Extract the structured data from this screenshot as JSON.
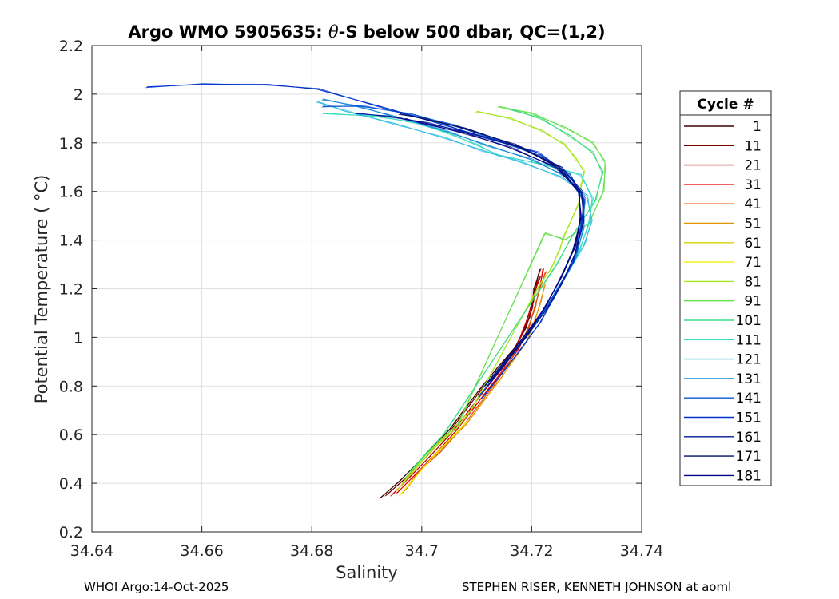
{
  "chart_data": {
    "type": "line",
    "title_parts": [
      "Argo WMO 5905635: ",
      "θ",
      "-S below 500 dbar,  QC=(1,2)"
    ],
    "xlabel": "Salinity",
    "ylabel": "Potential Temperature ( °C)",
    "xlim": [
      34.64,
      34.74
    ],
    "ylim": [
      0.2,
      2.2
    ],
    "x_ticks": [
      34.64,
      34.66,
      34.68,
      34.7,
      34.72,
      34.74
    ],
    "x_tick_labels": [
      "34.64",
      "34.66",
      "34.68",
      "34.7",
      "34.72",
      "34.74"
    ],
    "y_ticks": [
      0.2,
      0.4,
      0.6,
      0.8,
      1.0,
      1.2,
      1.4,
      1.6,
      1.8,
      2.0,
      2.2
    ],
    "y_tick_labels": [
      "0.2",
      "0.4",
      "0.6",
      "0.8",
      "1",
      "1.2",
      "1.4",
      "1.6",
      "1.8",
      "2",
      "2.2"
    ],
    "grid": true,
    "legend": {
      "title": "Cycle #",
      "placement": "right",
      "entries": [
        "1",
        "11",
        "21",
        "31",
        "41",
        "51",
        "61",
        "71",
        "81",
        "91",
        "101",
        "111",
        "121",
        "131",
        "141",
        "151",
        "161",
        "171",
        "181"
      ],
      "colors": [
        "#3d0000",
        "#7a0000",
        "#b80000",
        "#e60000",
        "#e55000",
        "#e39400",
        "#d7d000",
        "#f0f000",
        "#a6e61a",
        "#66e04d",
        "#3ddc80",
        "#33dcc2",
        "#33c0e6",
        "#1a8cd9",
        "#0a5ad2",
        "#0033cc",
        "#001a99",
        "#000d66",
        "#00008b"
      ]
    },
    "series": [
      {
        "name": "1",
        "color": "#3d0000",
        "points": [
          [
            34.6925,
            0.34
          ],
          [
            34.696,
            0.41
          ],
          [
            34.7,
            0.5
          ],
          [
            34.705,
            0.62
          ],
          [
            34.708,
            0.71
          ],
          [
            34.711,
            0.8
          ],
          [
            34.714,
            0.88
          ],
          [
            34.717,
            0.96
          ],
          [
            34.719,
            1.04
          ],
          [
            34.72,
            1.12
          ],
          [
            34.7205,
            1.2
          ],
          [
            34.7215,
            1.28
          ]
        ]
      },
      {
        "name": "11",
        "color": "#7a0000",
        "points": [
          [
            34.6935,
            0.35
          ],
          [
            34.697,
            0.42
          ],
          [
            34.7005,
            0.5
          ],
          [
            34.705,
            0.61
          ],
          [
            34.708,
            0.7
          ],
          [
            34.711,
            0.79
          ],
          [
            34.714,
            0.87
          ],
          [
            34.716,
            0.92
          ],
          [
            34.718,
            1.0
          ],
          [
            34.7195,
            1.08
          ],
          [
            34.7205,
            1.16
          ],
          [
            34.721,
            1.24
          ]
        ]
      },
      {
        "name": "21",
        "color": "#b80000",
        "points": [
          [
            34.6945,
            0.35
          ],
          [
            34.698,
            0.43
          ],
          [
            34.7015,
            0.51
          ],
          [
            34.7055,
            0.61
          ],
          [
            34.709,
            0.71
          ],
          [
            34.712,
            0.8
          ],
          [
            34.715,
            0.88
          ],
          [
            34.717,
            0.95
          ],
          [
            34.7185,
            1.03
          ],
          [
            34.7195,
            1.1
          ],
          [
            34.7205,
            1.18
          ],
          [
            34.7215,
            1.25
          ]
        ]
      },
      {
        "name": "31",
        "color": "#e60000",
        "points": [
          [
            34.6955,
            0.36
          ],
          [
            34.699,
            0.44
          ],
          [
            34.7025,
            0.52
          ],
          [
            34.706,
            0.61
          ],
          [
            34.7095,
            0.71
          ],
          [
            34.7125,
            0.8
          ],
          [
            34.715,
            0.87
          ],
          [
            34.7175,
            0.95
          ],
          [
            34.7195,
            1.04
          ],
          [
            34.7205,
            1.12
          ],
          [
            34.7215,
            1.2
          ],
          [
            34.722,
            1.28
          ]
        ]
      },
      {
        "name": "41",
        "color": "#e55000",
        "points": [
          [
            34.6965,
            0.36
          ],
          [
            34.6995,
            0.45
          ],
          [
            34.7035,
            0.53
          ],
          [
            34.707,
            0.62
          ],
          [
            34.71,
            0.71
          ],
          [
            34.713,
            0.8
          ],
          [
            34.7155,
            0.88
          ],
          [
            34.7175,
            0.96
          ],
          [
            34.7195,
            1.04
          ],
          [
            34.7205,
            1.12
          ],
          [
            34.7215,
            1.2
          ],
          [
            34.7225,
            1.27
          ]
        ]
      },
      {
        "name": "51",
        "color": "#e39400",
        "points": [
          [
            34.697,
            0.37
          ],
          [
            34.7,
            0.46
          ],
          [
            34.704,
            0.55
          ],
          [
            34.708,
            0.64
          ],
          [
            34.711,
            0.73
          ],
          [
            34.714,
            0.82
          ],
          [
            34.7165,
            0.9
          ],
          [
            34.719,
            0.98
          ],
          [
            34.7205,
            1.06
          ],
          [
            34.7215,
            1.14
          ],
          [
            34.7225,
            1.22
          ]
        ]
      },
      {
        "name": "61",
        "color": "#d7d000",
        "points": [
          [
            34.6955,
            0.37
          ],
          [
            34.6985,
            0.45
          ],
          [
            34.702,
            0.54
          ],
          [
            34.7055,
            0.62
          ],
          [
            34.708,
            0.68
          ]
        ]
      },
      {
        "name": "71",
        "color": "#f0f000",
        "points": [
          [
            34.696,
            0.35
          ],
          [
            34.699,
            0.43
          ],
          [
            34.7025,
            0.52
          ],
          [
            34.706,
            0.6
          ],
          [
            34.7085,
            0.66
          ]
        ]
      },
      {
        "name": "81",
        "color": "#a6e61a",
        "points": [
          [
            34.6965,
            0.4
          ],
          [
            34.6995,
            0.48
          ],
          [
            34.703,
            0.56
          ],
          [
            34.7065,
            0.63
          ],
          [
            34.709,
            0.7
          ],
          [
            34.7215,
            1.22
          ],
          [
            34.7235,
            1.28
          ],
          [
            34.725,
            1.36
          ],
          [
            34.726,
            1.42
          ],
          [
            34.7285,
            1.55
          ],
          [
            34.729,
            1.62
          ],
          [
            34.7295,
            1.68
          ],
          [
            34.728,
            1.74
          ],
          [
            34.726,
            1.79
          ],
          [
            34.722,
            1.85
          ],
          [
            34.716,
            1.9
          ],
          [
            34.71,
            1.93
          ]
        ]
      },
      {
        "name": "91",
        "color": "#66e04d",
        "points": [
          [
            34.697,
            0.42
          ],
          [
            34.7,
            0.5
          ],
          [
            34.7035,
            0.58
          ],
          [
            34.7065,
            0.64
          ],
          [
            34.7225,
            1.43
          ],
          [
            34.726,
            1.4
          ],
          [
            34.7305,
            1.47
          ],
          [
            34.733,
            1.6
          ],
          [
            34.7335,
            1.72
          ],
          [
            34.731,
            1.8
          ],
          [
            34.7265,
            1.86
          ],
          [
            34.72,
            1.92
          ],
          [
            34.714,
            1.95
          ]
        ]
      },
      {
        "name": "101",
        "color": "#3ddc80",
        "points": [
          [
            34.698,
            0.45
          ],
          [
            34.701,
            0.53
          ],
          [
            34.704,
            0.6
          ],
          [
            34.7245,
            1.3
          ],
          [
            34.7275,
            1.42
          ],
          [
            34.7315,
            1.56
          ],
          [
            34.733,
            1.68
          ],
          [
            34.731,
            1.76
          ],
          [
            34.727,
            1.83
          ],
          [
            34.7215,
            1.9
          ],
          [
            34.716,
            1.94
          ]
        ]
      },
      {
        "name": "111",
        "color": "#33dcc2",
        "points": [
          [
            34.7125,
            0.83
          ],
          [
            34.716,
            0.92
          ],
          [
            34.7195,
            1.02
          ],
          [
            34.7225,
            1.12
          ],
          [
            34.7255,
            1.22
          ],
          [
            34.7285,
            1.35
          ],
          [
            34.7305,
            1.47
          ],
          [
            34.731,
            1.57
          ],
          [
            34.729,
            1.67
          ],
          [
            34.722,
            1.71
          ],
          [
            34.714,
            1.75
          ],
          [
            34.71,
            1.79
          ],
          [
            34.705,
            1.84
          ],
          [
            34.699,
            1.88
          ],
          [
            34.692,
            1.91
          ],
          [
            34.682,
            1.92
          ]
        ]
      },
      {
        "name": "121",
        "color": "#33c0e6",
        "points": [
          [
            34.713,
            0.83
          ],
          [
            34.7165,
            0.93
          ],
          [
            34.72,
            1.04
          ],
          [
            34.7235,
            1.15
          ],
          [
            34.7265,
            1.26
          ],
          [
            34.7295,
            1.38
          ],
          [
            34.731,
            1.48
          ],
          [
            34.73,
            1.58
          ],
          [
            34.7255,
            1.66
          ],
          [
            34.718,
            1.72
          ],
          [
            34.711,
            1.77
          ],
          [
            34.704,
            1.82
          ],
          [
            34.695,
            1.88
          ],
          [
            34.686,
            1.93
          ],
          [
            34.681,
            1.97
          ]
        ]
      },
      {
        "name": "131",
        "color": "#1a8cd9",
        "points": [
          [
            34.7115,
            0.8
          ],
          [
            34.715,
            0.89
          ],
          [
            34.7185,
            0.99
          ],
          [
            34.722,
            1.1
          ],
          [
            34.725,
            1.21
          ],
          [
            34.728,
            1.33
          ],
          [
            34.7295,
            1.45
          ],
          [
            34.7295,
            1.56
          ],
          [
            34.7265,
            1.66
          ],
          [
            34.72,
            1.73
          ],
          [
            34.712,
            1.79
          ],
          [
            34.704,
            1.85
          ],
          [
            34.695,
            1.91
          ],
          [
            34.688,
            1.95
          ],
          [
            34.682,
            1.98
          ]
        ]
      },
      {
        "name": "141",
        "color": "#0a5ad2",
        "points": [
          [
            34.7105,
            0.76
          ],
          [
            34.714,
            0.86
          ],
          [
            34.7175,
            0.96
          ],
          [
            34.721,
            1.07
          ],
          [
            34.7245,
            1.19
          ],
          [
            34.7275,
            1.31
          ],
          [
            34.729,
            1.44
          ],
          [
            34.7295,
            1.55
          ],
          [
            34.7275,
            1.65
          ],
          [
            34.722,
            1.74
          ],
          [
            34.714,
            1.81
          ],
          [
            34.706,
            1.87
          ],
          [
            34.698,
            1.92
          ],
          [
            34.689,
            1.95
          ],
          [
            34.682,
            1.95
          ]
        ]
      },
      {
        "name": "151",
        "color": "#0033cc",
        "points": [
          [
            34.711,
            0.75
          ],
          [
            34.7145,
            0.85
          ],
          [
            34.718,
            0.95
          ],
          [
            34.7215,
            1.06
          ],
          [
            34.7245,
            1.18
          ],
          [
            34.7275,
            1.31
          ],
          [
            34.729,
            1.45
          ],
          [
            34.7295,
            1.57
          ],
          [
            34.727,
            1.67
          ],
          [
            34.721,
            1.76
          ],
          [
            34.712,
            1.82
          ],
          [
            34.703,
            1.88
          ],
          [
            34.694,
            1.94
          ],
          [
            34.681,
            2.02
          ],
          [
            34.672,
            2.04
          ],
          [
            34.66,
            2.04
          ],
          [
            34.65,
            2.03
          ]
        ]
      },
      {
        "name": "161",
        "color": "#001a99",
        "points": [
          [
            34.712,
            0.8
          ],
          [
            34.7155,
            0.9
          ],
          [
            34.719,
            1.0
          ],
          [
            34.7225,
            1.11
          ],
          [
            34.7255,
            1.22
          ],
          [
            34.728,
            1.35
          ],
          [
            34.7295,
            1.48
          ],
          [
            34.729,
            1.6
          ],
          [
            34.7255,
            1.7
          ],
          [
            34.718,
            1.78
          ],
          [
            34.709,
            1.84
          ],
          [
            34.701,
            1.88
          ],
          [
            34.694,
            1.91
          ],
          [
            34.688,
            1.92
          ]
        ]
      },
      {
        "name": "171",
        "color": "#000d66",
        "points": [
          [
            34.7125,
            0.82
          ],
          [
            34.716,
            0.92
          ],
          [
            34.7195,
            1.02
          ],
          [
            34.7225,
            1.13
          ],
          [
            34.7255,
            1.25
          ],
          [
            34.728,
            1.38
          ],
          [
            34.729,
            1.5
          ],
          [
            34.7285,
            1.6
          ],
          [
            34.725,
            1.7
          ],
          [
            34.717,
            1.79
          ],
          [
            34.708,
            1.86
          ],
          [
            34.7,
            1.9
          ],
          [
            34.696,
            1.92
          ]
        ]
      },
      {
        "name": "181",
        "color": "#00008b",
        "points": [
          [
            34.7115,
            0.8
          ],
          [
            34.715,
            0.9
          ],
          [
            34.7185,
            1.0
          ],
          [
            34.722,
            1.11
          ],
          [
            34.725,
            1.23
          ],
          [
            34.7275,
            1.36
          ],
          [
            34.729,
            1.49
          ],
          [
            34.7285,
            1.6
          ],
          [
            34.7245,
            1.7
          ],
          [
            34.716,
            1.78
          ],
          [
            34.708,
            1.84
          ],
          [
            34.7,
            1.88
          ],
          [
            34.697,
            1.9
          ]
        ]
      }
    ]
  },
  "footer": {
    "left": "WHOI Argo:14-Oct-2025",
    "right": "STEPHEN RISER, KENNETH JOHNSON at aoml"
  }
}
